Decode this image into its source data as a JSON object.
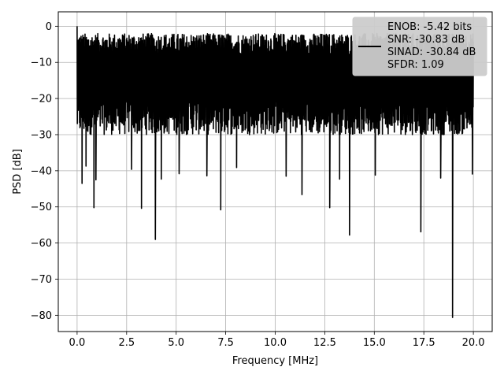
{
  "chart_data": {
    "type": "line",
    "xlabel": "Frequency [MHz]",
    "ylabel": "PSD [dB]",
    "xlim": [
      -0.95,
      20.95
    ],
    "ylim": [
      -84.5,
      4.0
    ],
    "x_ticks": [
      0.0,
      2.5,
      5.0,
      7.5,
      10.0,
      12.5,
      15.0,
      17.5,
      20.0
    ],
    "x_tick_labels": [
      "0.0",
      "2.5",
      "5.0",
      "7.5",
      "10.0",
      "12.5",
      "15.0",
      "17.5",
      "20.0"
    ],
    "y_ticks": [
      0,
      -10,
      -20,
      -30,
      -40,
      -50,
      -60,
      -70,
      -80
    ],
    "y_tick_labels": [
      "0",
      "−10",
      "−20",
      "−30",
      "−40",
      "−50",
      "−60",
      "−70",
      "−80"
    ],
    "grid": true,
    "legend_position": "top-right",
    "series": [
      {
        "color": "#000000",
        "x_range": [
          0.0,
          20.0
        ],
        "typical_upper_dB": -5,
        "typical_lower_dB": -27,
        "peak": {
          "x": 0.0,
          "y": 0.0
        },
        "notable_dips": [
          {
            "x": 0.25,
            "y": -43.5
          },
          {
            "x": 0.45,
            "y": -38.7
          },
          {
            "x": 0.85,
            "y": -50.2
          },
          {
            "x": 0.95,
            "y": -42.5
          },
          {
            "x": 2.75,
            "y": -39.6
          },
          {
            "x": 3.25,
            "y": -50.4
          },
          {
            "x": 3.95,
            "y": -59.0
          },
          {
            "x": 4.25,
            "y": -42.3
          },
          {
            "x": 5.15,
            "y": -40.8
          },
          {
            "x": 6.55,
            "y": -41.4
          },
          {
            "x": 7.25,
            "y": -50.8
          },
          {
            "x": 8.05,
            "y": -39.1
          },
          {
            "x": 10.55,
            "y": -41.5
          },
          {
            "x": 11.35,
            "y": -46.6
          },
          {
            "x": 12.75,
            "y": -50.2
          },
          {
            "x": 13.25,
            "y": -42.3
          },
          {
            "x": 13.75,
            "y": -57.8
          },
          {
            "x": 15.05,
            "y": -41.2
          },
          {
            "x": 17.35,
            "y": -56.9
          },
          {
            "x": 18.35,
            "y": -42.0
          },
          {
            "x": 18.95,
            "y": -80.6
          },
          {
            "x": 19.95,
            "y": -40.9
          }
        ]
      }
    ],
    "legend_text": [
      "ENOB: -5.42 bits",
      "SNR: -30.83 dB",
      "SINAD: -30.84 dB",
      "SFDR: 1.09"
    ]
  }
}
